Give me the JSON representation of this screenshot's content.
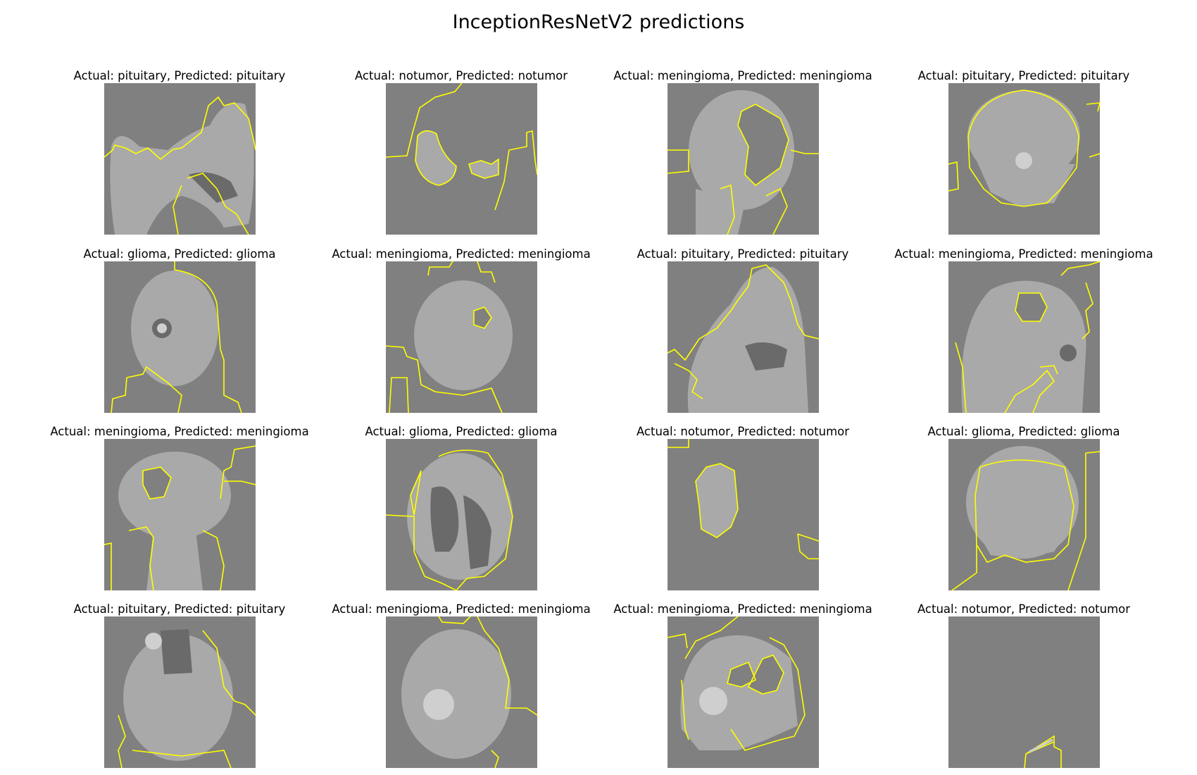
{
  "figure": {
    "title": "InceptionResNetV2 predictions"
  },
  "colors": {
    "mask_background": "#808080",
    "boundary": "#ffff00",
    "tissue": "#a9a9a9",
    "bright_tissue": "#cfcfcf",
    "dark_tissue": "#6a6a6a"
  },
  "panels": [
    {
      "label": "Actual: pituitary, Predicted: pituitary",
      "view": "sagittal"
    },
    {
      "label": "Actual: notumor, Predicted: notumor",
      "view": "fragments"
    },
    {
      "label": "Actual: meningioma, Predicted: meningioma",
      "view": "sagittal"
    },
    {
      "label": "Actual: pituitary, Predicted: pituitary",
      "view": "coronal"
    },
    {
      "label": "Actual: glioma, Predicted: glioma",
      "view": "axial"
    },
    {
      "label": "Actual: meningioma, Predicted: meningioma",
      "view": "axial"
    },
    {
      "label": "Actual: pituitary, Predicted: pituitary",
      "view": "sagittal"
    },
    {
      "label": "Actual: meningioma, Predicted: meningioma",
      "view": "sagittal"
    },
    {
      "label": "Actual: meningioma, Predicted: meningioma",
      "view": "coronal"
    },
    {
      "label": "Actual: glioma, Predicted: glioma",
      "view": "axial"
    },
    {
      "label": "Actual: notumor, Predicted: notumor",
      "view": "fragment"
    },
    {
      "label": "Actual: glioma, Predicted: glioma",
      "view": "coronal"
    },
    {
      "label": "Actual: pituitary, Predicted: pituitary",
      "view": "axial"
    },
    {
      "label": "Actual: meningioma, Predicted: meningioma",
      "view": "axial"
    },
    {
      "label": "Actual: meningioma, Predicted: meningioma",
      "view": "sagittal"
    },
    {
      "label": "Actual: notumor, Predicted: notumor",
      "view": "empty"
    }
  ]
}
